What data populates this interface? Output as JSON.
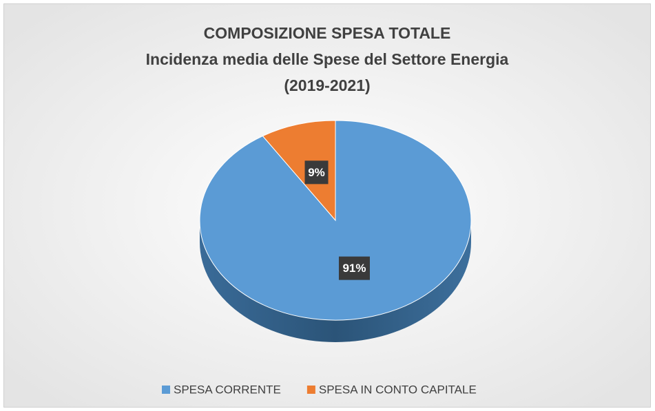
{
  "chart_data": {
    "type": "pie",
    "title": [
      "COMPOSIZIONE SPESA TOTALE",
      "Incidenza media delle Spese del Settore Energia",
      "(2019-2021)"
    ],
    "categories": [
      "SPESA CORRENTE",
      "SPESA IN CONTO CAPITALE"
    ],
    "values": [
      91,
      9
    ],
    "value_labels": [
      "91%",
      "9%"
    ],
    "colors": [
      "#5b9bd5",
      "#ed7d31"
    ],
    "legend": "bottom"
  }
}
